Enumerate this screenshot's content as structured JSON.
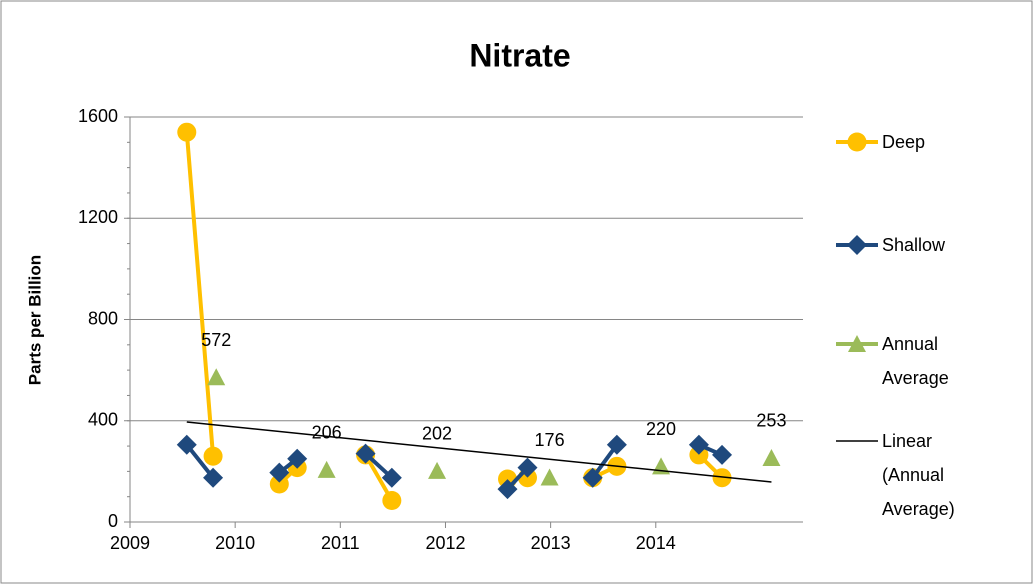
{
  "chart_data": {
    "type": "line",
    "title": "Nitrate",
    "y_label": "Parts per Billion",
    "xlim": [
      2009,
      2015.4
    ],
    "xticks": [
      2009,
      2010,
      2011,
      2012,
      2013,
      2014
    ],
    "ylim": [
      0,
      1600
    ],
    "yticks": [
      0,
      400,
      800,
      1200,
      1600
    ],
    "grid": true,
    "legend": "right",
    "series": [
      {
        "name": "Deep",
        "color": "#FFC000",
        "marker": "circle",
        "line": true,
        "x": [
          2009.54,
          2009.79,
          null,
          2010.42,
          2010.59,
          null,
          2011.24,
          2011.49,
          null,
          2012.59,
          2012.78,
          null,
          2013.4,
          2013.63,
          null,
          2014.41,
          2014.63
        ],
        "values": [
          1540,
          260,
          null,
          150,
          215,
          null,
          265,
          85,
          null,
          170,
          175,
          null,
          175,
          220,
          null,
          265,
          175
        ]
      },
      {
        "name": "Shallow",
        "color": "#1F497D",
        "marker": "diamond",
        "line": true,
        "x": [
          2009.54,
          2009.79,
          null,
          2010.42,
          2010.59,
          null,
          2011.24,
          2011.49,
          null,
          2012.59,
          2012.78,
          null,
          2013.4,
          2013.63,
          null,
          2014.41,
          2014.63
        ],
        "values": [
          305,
          175,
          null,
          195,
          250,
          null,
          270,
          175,
          null,
          130,
          215,
          null,
          175,
          305,
          null,
          305,
          265
        ]
      },
      {
        "name": "Annual Average",
        "color": "#9BBB59",
        "marker": "triangle",
        "line": false,
        "data_labels": true,
        "x": [
          2009.82,
          2010.87,
          2011.92,
          2012.99,
          2014.05,
          2015.1
        ],
        "values": [
          572,
          206,
          202,
          176,
          220,
          253
        ]
      },
      {
        "name": "Linear (Annual Average)",
        "color": "#000000",
        "marker": "none",
        "line": true,
        "x": [
          2009.54,
          2015.1
        ],
        "values": [
          395,
          158
        ]
      }
    ]
  }
}
